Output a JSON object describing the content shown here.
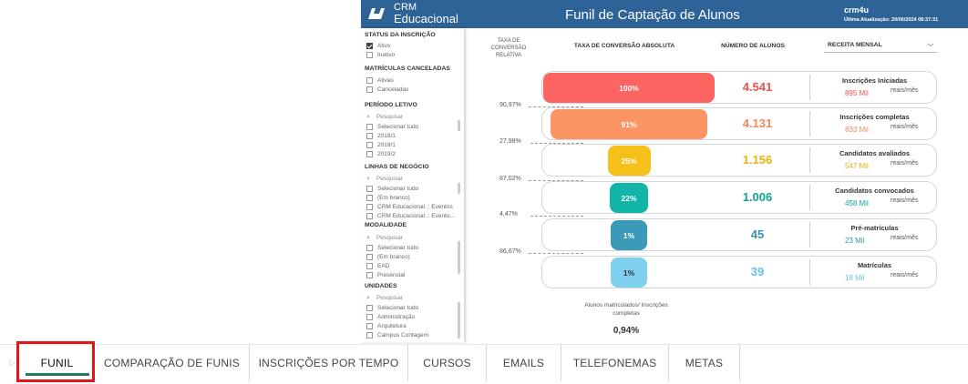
{
  "header": {
    "logo_line1": "CRM",
    "logo_line2": "Educacional",
    "title": "Funil de Captação de Alunos",
    "user": "crm4u",
    "last_update": "Última Atualização: 20/06/2024 08:37:31",
    "bg_color": "#2e6398"
  },
  "filters": {
    "status": {
      "title": "STATUS DA INSCRIÇÃO",
      "options": [
        {
          "label": "Ativo",
          "checked": true
        },
        {
          "label": "Inativo",
          "checked": false
        }
      ]
    },
    "canceladas": {
      "title": "MATRÍCULAS CANCELADAS",
      "options": [
        {
          "label": "Ativas"
        },
        {
          "label": "Canceladas"
        }
      ]
    },
    "periodo": {
      "title": "PERÍODO LETIVO",
      "search": "Pesquisar",
      "options": [
        {
          "label": "Selecionar tudo"
        },
        {
          "label": "2018/1"
        },
        {
          "label": "2019/1"
        },
        {
          "label": "2019/2"
        }
      ]
    },
    "linhas": {
      "title": "LINHAS DE NEGÓCIO",
      "search": "Pesquisar",
      "options": [
        {
          "label": "Selecionar tudo"
        },
        {
          "label": "(Em branco)"
        },
        {
          "label": "CRM Educacional :: Eventos"
        },
        {
          "label": "CRM Educacional :: Evento..."
        }
      ]
    },
    "modalidade": {
      "title": "MODALIDADE",
      "search": "Pesquisar",
      "options": [
        {
          "label": "Selecionar tudo"
        },
        {
          "label": "(Em branco)"
        },
        {
          "label": "EAD"
        },
        {
          "label": "Presencial"
        }
      ]
    },
    "unidades": {
      "title": "UNIDADES",
      "search": "Pesquisar",
      "options": [
        {
          "label": "Selecionar tudo"
        },
        {
          "label": "Administração"
        },
        {
          "label": "Arquitetura"
        },
        {
          "label": "Campus Contagem"
        }
      ]
    }
  },
  "columns": {
    "relative_rate": "TAXA DE CONVERSÃO RELATIVA",
    "absolute_rate": "TAXA DE CONVERSÃO ABSOLUTA",
    "students": "NÚMERO DE ALUNOS",
    "revenue_dropdown": "RECEITA MENSAL"
  },
  "funnel": [
    {
      "pct": "100%",
      "pct_value": 1.0,
      "count": "4.541",
      "stage": "Inscrições Iniciadas",
      "revenue": "895 Mil",
      "unit": "reais/mês",
      "color": "#fb6461",
      "count_color": "#f0504e"
    },
    {
      "pct": "91%",
      "pct_value": 0.91,
      "count": "4.131",
      "stage": "Inscrições completas",
      "revenue": "833 Mil",
      "unit": "reais/mês",
      "color": "#fc9564",
      "count_color": "#f08a5a"
    },
    {
      "pct": "25%",
      "pct_value": 0.25,
      "count": "1.156",
      "stage": "Candidatos avaliados",
      "revenue": "547 Mil",
      "unit": "reais/mês",
      "color": "#f5c118",
      "count_color": "#e8b20c"
    },
    {
      "pct": "22%",
      "pct_value": 0.22,
      "count": "1.006",
      "stage": "Candidatos convocados",
      "revenue": "458 Mil",
      "unit": "reais/mês",
      "color": "#12b6a8",
      "count_color": "#0fa394"
    },
    {
      "pct": "1%",
      "pct_value": 0.01,
      "count": "45",
      "stage": "Pré-matrículas",
      "revenue": "23 Mil",
      "unit": "reais/mês",
      "color": "#3a9ab8",
      "count_color": "#3a8fae"
    },
    {
      "pct": "1%",
      "pct_value": 0.01,
      "count": "39",
      "stage": "Matrículas",
      "revenue": "18 Mil",
      "unit": "reais/mês",
      "color": "#7fd0ee",
      "count_color": "#68bfe1"
    }
  ],
  "relative_rates": [
    "90,97%",
    "27,98%",
    "87,02%",
    "4,47%",
    "86,67%"
  ],
  "footer": {
    "note": "Alunos matriculados/ Inscrições completas",
    "value": "0,94%"
  },
  "tabs": [
    {
      "label": "FUNIL",
      "active": true
    },
    {
      "label": "COMPARAÇÃO DE FUNIS",
      "active": false
    },
    {
      "label": "INSCRIÇÕES POR TEMPO",
      "active": false
    },
    {
      "label": "CURSOS",
      "active": false
    },
    {
      "label": "EMAILS",
      "active": false
    },
    {
      "label": "TELEFONEMAS",
      "active": false
    },
    {
      "label": "METAS",
      "active": false
    }
  ]
}
